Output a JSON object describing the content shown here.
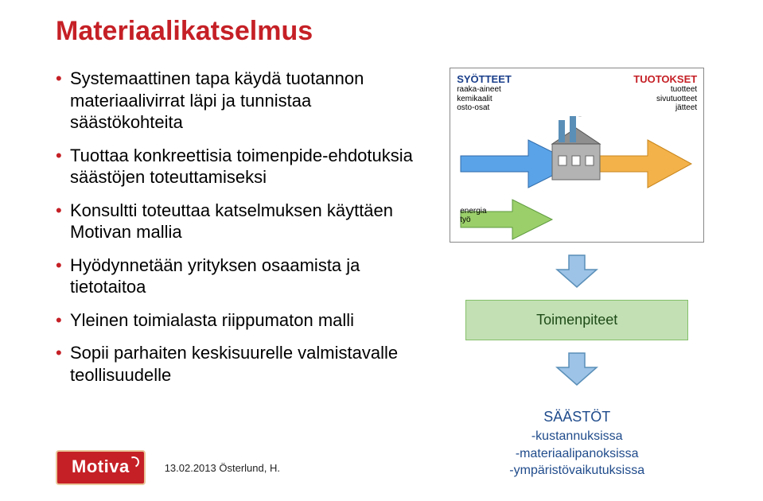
{
  "title": {
    "text": "Materiaalikatselmus",
    "color": "#c52026"
  },
  "bullets": {
    "items": [
      "Systemaattinen tapa käydä tuotannon materiaalivirrat läpi ja tunnistaa säästökohteita",
      "Tuottaa konkreettisia toimenpide-ehdotuksia säästöjen toteuttamiseksi",
      "Konsultti toteuttaa katselmuksen käyttäen Motivan mallia",
      "Hyödynnetään yrityksen osaamista ja tietotaitoa",
      "Yleinen toimialasta riippumaton malli",
      "Sopii parhaiten keskisuurelle valmistavalle teollisuudelle"
    ],
    "text_color": "#000000",
    "bullet_color": "#c52026"
  },
  "diagram": {
    "inputs_header": {
      "text": "SYÖTTEET",
      "color": "#1b3f8b"
    },
    "outputs_header": {
      "text": "TUOTOKSET",
      "color": "#c52026"
    },
    "inputs_sub": "raaka-aineet\nkemikaalit\nosto-osat",
    "outputs_sub": "tuotteet\nsivutuotteet\njätteet",
    "energy_label": "energia\ntyö",
    "colors": {
      "input_arrow": "#5aa3e8",
      "output_arrow": "#f3b24a",
      "energy_arrow": "#9bcf6a",
      "factory_wall": "#b3b3b3",
      "factory_roof": "#8f8f8f",
      "chimney": "#5a8fb8",
      "border": "#888888"
    }
  },
  "arrow": {
    "fill": "#9dc3e6",
    "stroke": "#5a8fb8"
  },
  "actions_box": {
    "text": "Toimenpiteet",
    "bg": "#c2e0b4",
    "border": "#86c06a",
    "text_color": "#1f4b18"
  },
  "savings_box": {
    "header": "SÄÄSTÖT",
    "lines": [
      "-kustannuksissa",
      "-materiaalipanoksissa",
      "-ympäristövaikutuksissa"
    ],
    "text_color": "#1f4b8b"
  },
  "footer": {
    "logo_text": "Motiva",
    "logo_bg": "#c52026",
    "logo_text_color": "#ffffff",
    "note": "13.02.2013 Österlund, H."
  }
}
